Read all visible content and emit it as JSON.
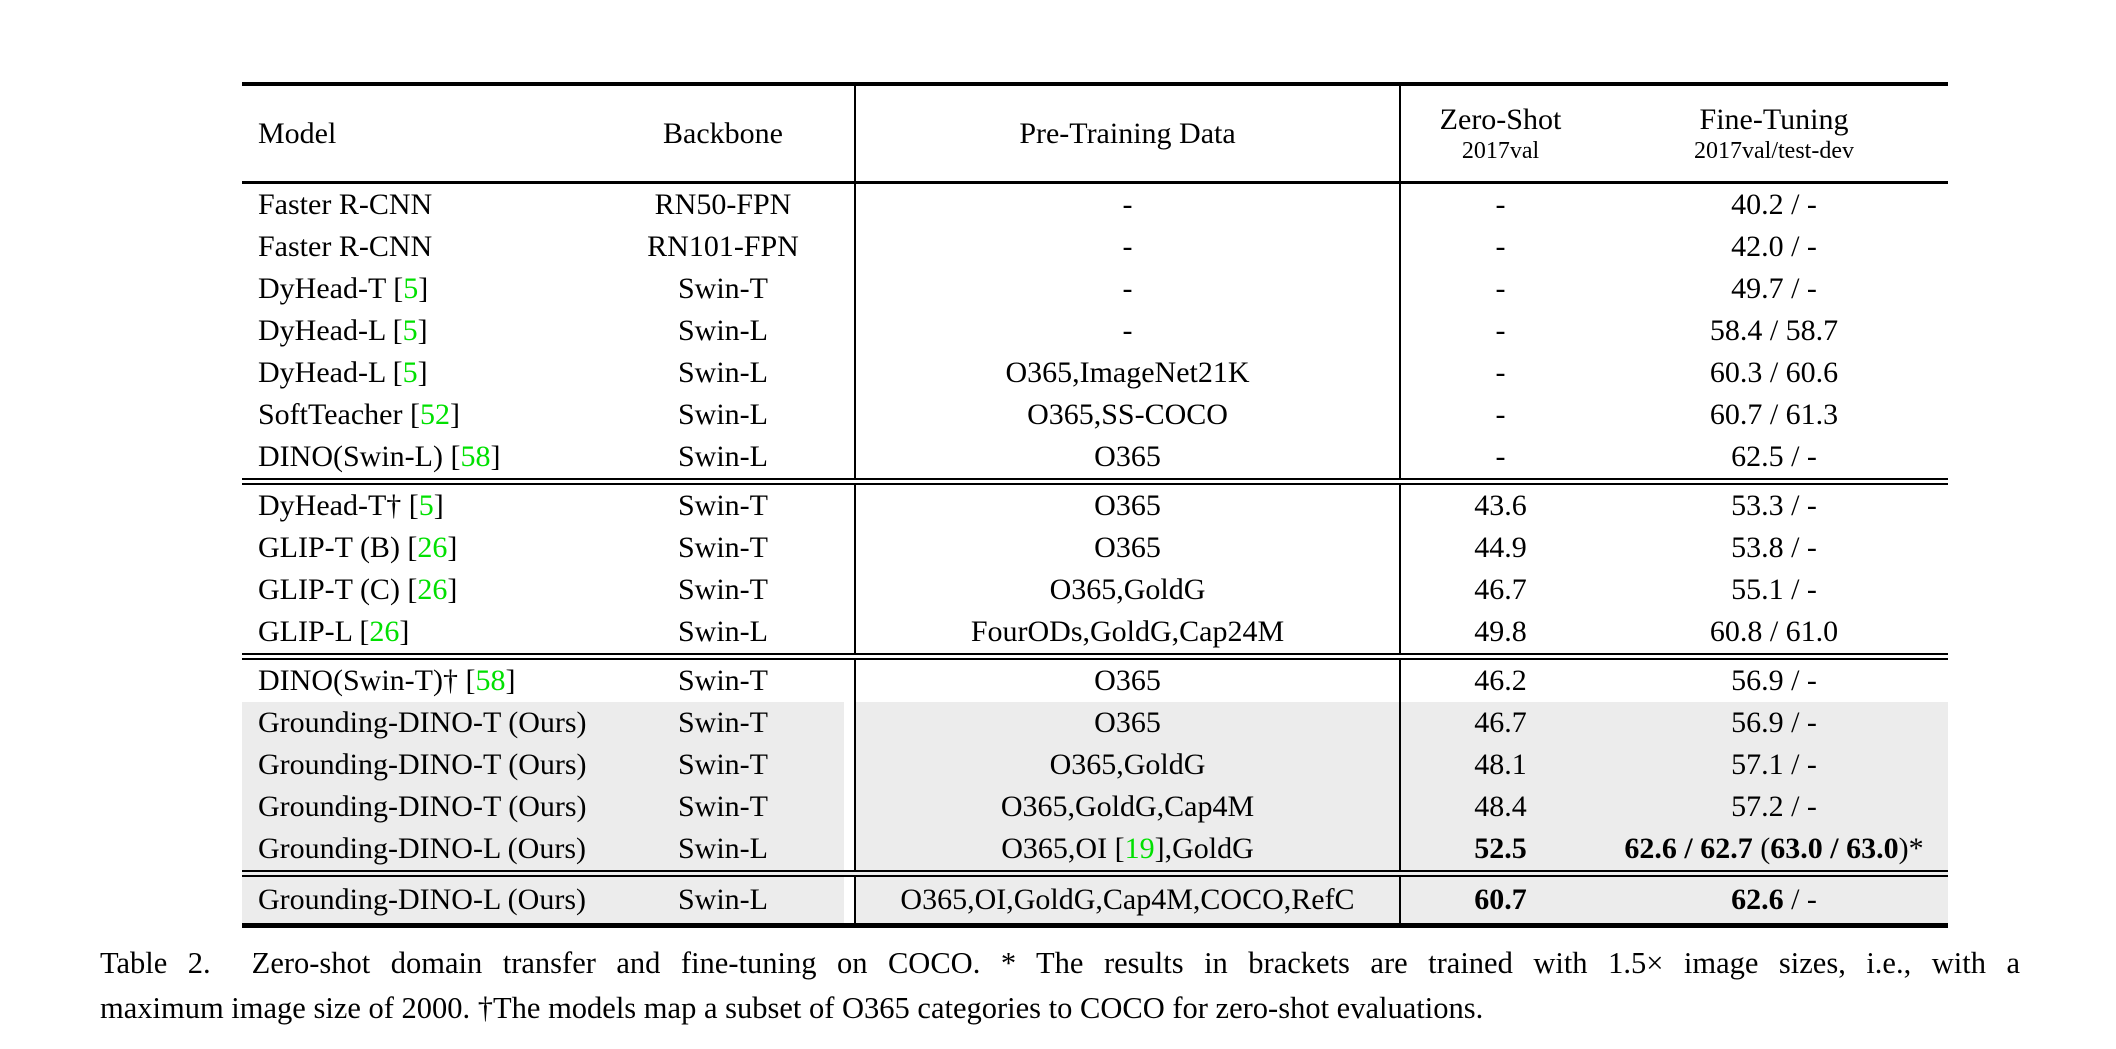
{
  "colors": {
    "citation_green": "#00e000",
    "row_shade": "#ececec",
    "text": "#000000"
  },
  "table": {
    "headers": {
      "model": "Model",
      "backbone": "Backbone",
      "pretrain": "Pre-Training Data",
      "zeroshot_title": "Zero-Shot",
      "zeroshot_sub": "2017val",
      "finetune_title": "Fine-Tuning",
      "finetune_sub": "2017val/test-dev"
    },
    "groups": [
      {
        "rows": [
          {
            "model": [
              {
                "t": "Faster R-CNN"
              }
            ],
            "backbone": "RN50-FPN",
            "pretrain": [
              {
                "t": "-"
              }
            ],
            "zs": [
              {
                "t": "-"
              }
            ],
            "ft": [
              {
                "t": "40.2 / -"
              }
            ],
            "shaded": false
          },
          {
            "model": [
              {
                "t": "Faster R-CNN"
              }
            ],
            "backbone": "RN101-FPN",
            "pretrain": [
              {
                "t": "-"
              }
            ],
            "zs": [
              {
                "t": "-"
              }
            ],
            "ft": [
              {
                "t": "42.0 / -"
              }
            ],
            "shaded": false
          },
          {
            "model": [
              {
                "t": "DyHead-T ["
              },
              {
                "t": "5",
                "g": true
              },
              {
                "t": "]"
              }
            ],
            "backbone": "Swin-T",
            "pretrain": [
              {
                "t": "-"
              }
            ],
            "zs": [
              {
                "t": "-"
              }
            ],
            "ft": [
              {
                "t": "49.7 / -"
              }
            ],
            "shaded": false
          },
          {
            "model": [
              {
                "t": "DyHead-L ["
              },
              {
                "t": "5",
                "g": true
              },
              {
                "t": "]"
              }
            ],
            "backbone": "Swin-L",
            "pretrain": [
              {
                "t": "-"
              }
            ],
            "zs": [
              {
                "t": "-"
              }
            ],
            "ft": [
              {
                "t": "58.4 / 58.7"
              }
            ],
            "shaded": false
          },
          {
            "model": [
              {
                "t": "DyHead-L ["
              },
              {
                "t": "5",
                "g": true
              },
              {
                "t": "]"
              }
            ],
            "backbone": "Swin-L",
            "pretrain": [
              {
                "t": "O365,ImageNet21K"
              }
            ],
            "zs": [
              {
                "t": "-"
              }
            ],
            "ft": [
              {
                "t": "60.3 / 60.6"
              }
            ],
            "shaded": false
          },
          {
            "model": [
              {
                "t": "SoftTeacher ["
              },
              {
                "t": "52",
                "g": true
              },
              {
                "t": "]"
              }
            ],
            "backbone": "Swin-L",
            "pretrain": [
              {
                "t": "O365,SS-COCO"
              }
            ],
            "zs": [
              {
                "t": "-"
              }
            ],
            "ft": [
              {
                "t": "60.7 / 61.3"
              }
            ],
            "shaded": false
          },
          {
            "model": [
              {
                "t": "DINO(Swin-L) ["
              },
              {
                "t": "58",
                "g": true
              },
              {
                "t": "]"
              }
            ],
            "backbone": "Swin-L",
            "pretrain": [
              {
                "t": "O365"
              }
            ],
            "zs": [
              {
                "t": "-"
              }
            ],
            "ft": [
              {
                "t": "62.5 / -"
              }
            ],
            "shaded": false
          }
        ]
      },
      {
        "rows": [
          {
            "model": [
              {
                "t": "DyHead-T† ["
              },
              {
                "t": "5",
                "g": true
              },
              {
                "t": "]"
              }
            ],
            "backbone": "Swin-T",
            "pretrain": [
              {
                "t": "O365"
              }
            ],
            "zs": [
              {
                "t": "43.6"
              }
            ],
            "ft": [
              {
                "t": "53.3 / -"
              }
            ],
            "shaded": false
          },
          {
            "model": [
              {
                "t": "GLIP-T (B) ["
              },
              {
                "t": "26",
                "g": true
              },
              {
                "t": "]"
              }
            ],
            "backbone": "Swin-T",
            "pretrain": [
              {
                "t": "O365"
              }
            ],
            "zs": [
              {
                "t": "44.9"
              }
            ],
            "ft": [
              {
                "t": "53.8 / -"
              }
            ],
            "shaded": false
          },
          {
            "model": [
              {
                "t": "GLIP-T (C) ["
              },
              {
                "t": "26",
                "g": true
              },
              {
                "t": "]"
              }
            ],
            "backbone": "Swin-T",
            "pretrain": [
              {
                "t": "O365,GoldG"
              }
            ],
            "zs": [
              {
                "t": "46.7"
              }
            ],
            "ft": [
              {
                "t": "55.1 / -"
              }
            ],
            "shaded": false
          },
          {
            "model": [
              {
                "t": "GLIP-L ["
              },
              {
                "t": "26",
                "g": true
              },
              {
                "t": "]"
              }
            ],
            "backbone": "Swin-L",
            "pretrain": [
              {
                "t": "FourODs,GoldG,Cap24M"
              }
            ],
            "zs": [
              {
                "t": "49.8"
              }
            ],
            "ft": [
              {
                "t": "60.8 / 61.0"
              }
            ],
            "shaded": false
          }
        ]
      },
      {
        "rows": [
          {
            "model": [
              {
                "t": "DINO(Swin-T)† ["
              },
              {
                "t": "58",
                "g": true
              },
              {
                "t": "]"
              }
            ],
            "backbone": "Swin-T",
            "pretrain": [
              {
                "t": "O365"
              }
            ],
            "zs": [
              {
                "t": "46.2"
              }
            ],
            "ft": [
              {
                "t": "56.9 / -"
              }
            ],
            "shaded": false
          },
          {
            "model": [
              {
                "t": "Grounding-DINO-T (Ours)"
              }
            ],
            "backbone": "Swin-T",
            "pretrain": [
              {
                "t": "O365"
              }
            ],
            "zs": [
              {
                "t": "46.7"
              }
            ],
            "ft": [
              {
                "t": "56.9 / -"
              }
            ],
            "shaded": true
          },
          {
            "model": [
              {
                "t": "Grounding-DINO-T (Ours)"
              }
            ],
            "backbone": "Swin-T",
            "pretrain": [
              {
                "t": "O365,GoldG"
              }
            ],
            "zs": [
              {
                "t": "48.1"
              }
            ],
            "ft": [
              {
                "t": "57.1 / -"
              }
            ],
            "shaded": true
          },
          {
            "model": [
              {
                "t": "Grounding-DINO-T (Ours)"
              }
            ],
            "backbone": "Swin-T",
            "pretrain": [
              {
                "t": "O365,GoldG,Cap4M"
              }
            ],
            "zs": [
              {
                "t": "48.4"
              }
            ],
            "ft": [
              {
                "t": "57.2 / -"
              }
            ],
            "shaded": true
          },
          {
            "model": [
              {
                "t": "Grounding-DINO-L (Ours)"
              }
            ],
            "backbone": "Swin-L",
            "pretrain": [
              {
                "t": "O365,OI ["
              },
              {
                "t": "19",
                "g": true
              },
              {
                "t": "],GoldG"
              }
            ],
            "zs": [
              {
                "t": "52.5",
                "b": true
              }
            ],
            "ft": [
              {
                "t": "62.6 / 62.7",
                "b": true
              },
              {
                "t": " ("
              },
              {
                "t": "63.0 / 63.0",
                "b": true
              },
              {
                "t": ")*"
              }
            ],
            "shaded": true
          }
        ]
      },
      {
        "rows": [
          {
            "model": [
              {
                "t": "Grounding-DINO-L (Ours)"
              }
            ],
            "backbone": "Swin-L",
            "pretrain": [
              {
                "t": "O365,OI,GoldG,Cap4M,COCO,RefC"
              }
            ],
            "zs": [
              {
                "t": "60.7",
                "b": true
              }
            ],
            "ft": [
              {
                "t": "62.6",
                "b": true
              },
              {
                "t": " / -"
              }
            ],
            "shaded": true
          }
        ]
      }
    ]
  },
  "caption": {
    "line1": "Table 2.  Zero-shot domain transfer and fine-tuning on COCO. * The results in brackets are trained with 1.5× image sizes, i.e., with a",
    "line2": "maximum image size of 2000. †The models map a subset of O365 categories to COCO for zero-shot evaluations."
  }
}
